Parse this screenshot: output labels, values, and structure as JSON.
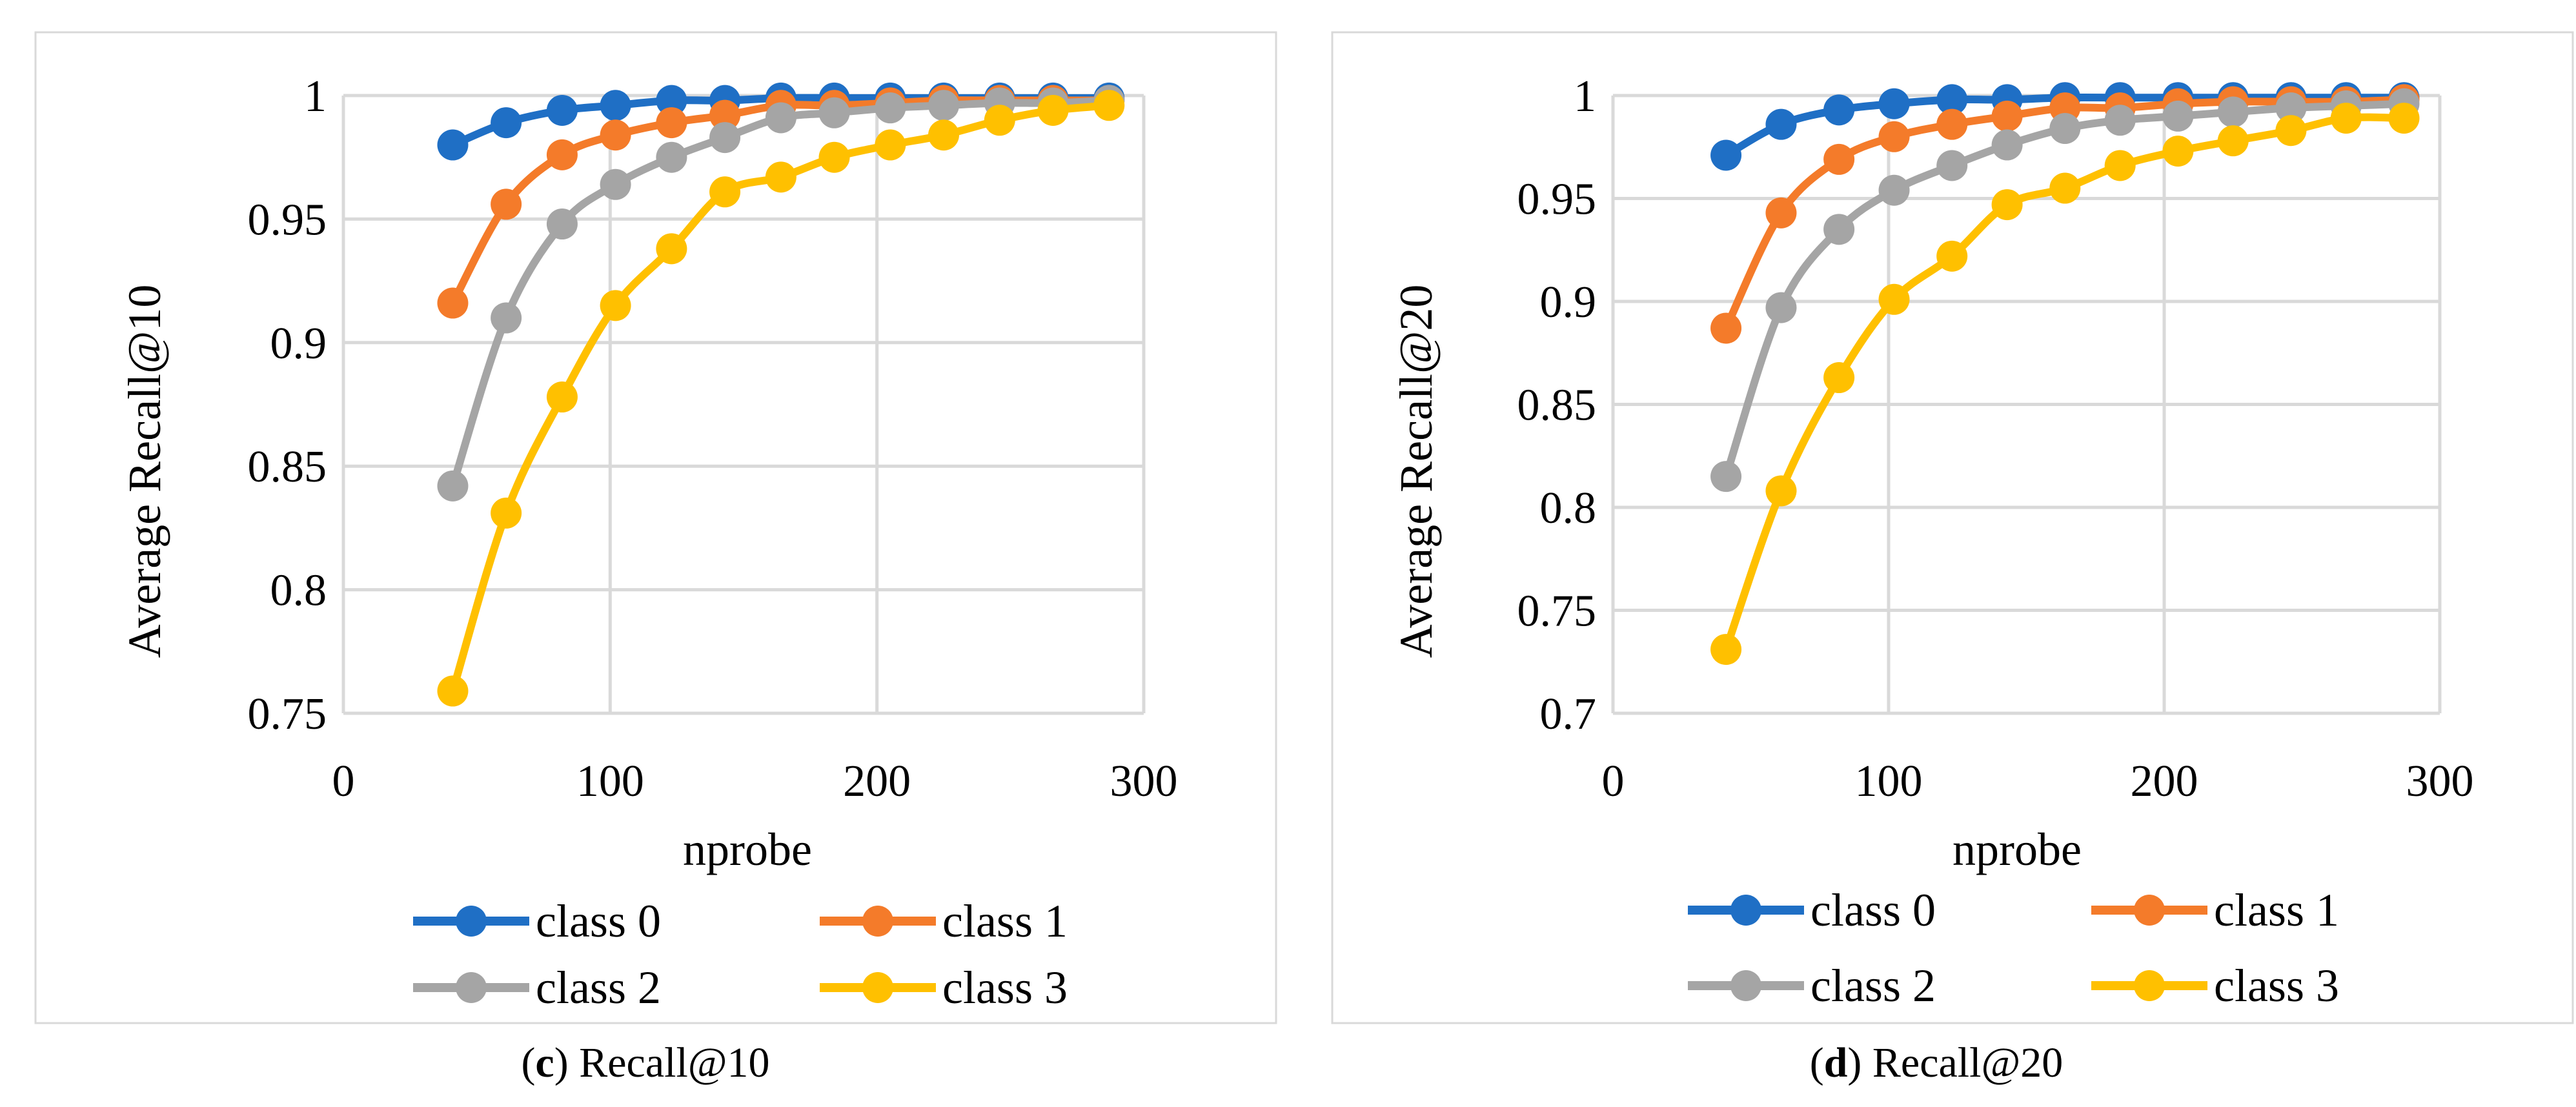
{
  "colors": {
    "class0": "#1f6fc5",
    "class1": "#f47b2a",
    "class2": "#a5a5a5",
    "class3": "#ffc000"
  },
  "chart_data": [
    {
      "type": "line",
      "panel_letter": "c",
      "caption_text": "Recall@10",
      "xlabel": "nprobe",
      "ylabel": "Average Recall@10",
      "xlim": [
        0,
        300
      ],
      "ylim": [
        0.75,
        1
      ],
      "xticks": [
        0,
        100,
        200,
        300
      ],
      "xtick_labels": [
        "0",
        "100",
        "200",
        "300"
      ],
      "yticks": [
        0.75,
        0.8,
        0.85,
        0.9,
        0.95,
        1
      ],
      "ytick_labels": [
        "0.75",
        "0.8",
        "0.85",
        "0.9",
        "0.95",
        "1"
      ],
      "grid": true,
      "legend_position": "bottom",
      "x": [
        41,
        61,
        82,
        102,
        123,
        143,
        164,
        184,
        205,
        225,
        246,
        266,
        287
      ],
      "series": [
        {
          "name": "class 0",
          "color_key": "class0",
          "values": [
            0.98,
            0.989,
            0.994,
            0.996,
            0.998,
            0.998,
            0.999,
            0.999,
            0.999,
            0.999,
            0.999,
            0.999,
            0.999
          ]
        },
        {
          "name": "class 1",
          "color_key": "class1",
          "values": [
            0.916,
            0.956,
            0.976,
            0.984,
            0.989,
            0.992,
            0.996,
            0.996,
            0.997,
            0.998,
            0.998,
            0.998,
            0.998
          ]
        },
        {
          "name": "class 2",
          "color_key": "class2",
          "values": [
            0.842,
            0.91,
            0.948,
            0.964,
            0.975,
            0.983,
            0.991,
            0.993,
            0.995,
            0.996,
            0.997,
            0.997,
            0.998
          ]
        },
        {
          "name": "class 3",
          "color_key": "class3",
          "values": [
            0.759,
            0.831,
            0.878,
            0.915,
            0.938,
            0.961,
            0.967,
            0.975,
            0.98,
            0.984,
            0.99,
            0.994,
            0.996
          ]
        }
      ]
    },
    {
      "type": "line",
      "panel_letter": "d",
      "caption_text": "Recall@20",
      "xlabel": "nprobe",
      "ylabel": "Average Recall@20",
      "xlim": [
        0,
        300
      ],
      "ylim": [
        0.7,
        1
      ],
      "xticks": [
        0,
        100,
        200,
        300
      ],
      "xtick_labels": [
        "0",
        "100",
        "200",
        "300"
      ],
      "yticks": [
        0.7,
        0.75,
        0.8,
        0.85,
        0.9,
        0.95,
        1
      ],
      "ytick_labels": [
        "0.7",
        "0.75",
        "0.8",
        "0.85",
        "0.9",
        "0.95",
        "1"
      ],
      "grid": true,
      "legend_position": "bottom",
      "x": [
        41,
        61,
        82,
        102,
        123,
        143,
        164,
        184,
        205,
        225,
        246,
        266,
        287
      ],
      "series": [
        {
          "name": "class 0",
          "color_key": "class0",
          "values": [
            0.971,
            0.986,
            0.993,
            0.996,
            0.998,
            0.998,
            0.999,
            0.999,
            0.999,
            0.999,
            0.999,
            0.999,
            0.999
          ]
        },
        {
          "name": "class 1",
          "color_key": "class1",
          "values": [
            0.887,
            0.943,
            0.969,
            0.98,
            0.986,
            0.99,
            0.994,
            0.994,
            0.996,
            0.997,
            0.997,
            0.997,
            0.998
          ]
        },
        {
          "name": "class 2",
          "color_key": "class2",
          "values": [
            0.815,
            0.897,
            0.935,
            0.954,
            0.966,
            0.976,
            0.984,
            0.988,
            0.99,
            0.992,
            0.994,
            0.995,
            0.996
          ]
        },
        {
          "name": "class 3",
          "color_key": "class3",
          "values": [
            0.731,
            0.808,
            0.863,
            0.901,
            0.922,
            0.947,
            0.955,
            0.966,
            0.973,
            0.978,
            0.983,
            0.989,
            0.989
          ]
        }
      ]
    }
  ]
}
